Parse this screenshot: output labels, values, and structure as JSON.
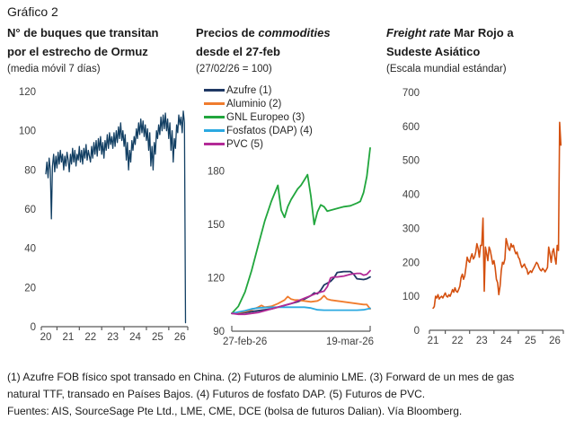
{
  "page": {
    "title": "Gráfico 2"
  },
  "footnotes": [
    "(1) Azufre FOB físico spot transado en China. (2) Futuros de aluminio LME. (3) Forward de un mes de gas",
    "natural TTF, transado en Países Bajos. (4) Futuros de fosfato DAP. (5) Futuros de PVC.",
    "Fuentes: AIS, SourceSage Pte Ltd., LME, CME, DCE (bolsa de futuros Dalian). Vía Bloomberg."
  ],
  "chart_data": [
    {
      "type": "line",
      "title_lines": [
        [
          {
            "t": "N° de buques que transitan",
            "i": false
          }
        ],
        [
          {
            "t": "por el estrecho de Ormuz",
            "i": false
          }
        ]
      ],
      "subtitle": "(media móvil 7 días)",
      "xlim": [
        19.8,
        26.35
      ],
      "ylim": [
        0,
        120
      ],
      "yticks": [
        0,
        20,
        40,
        60,
        80,
        100,
        120
      ],
      "xtick_labels": [
        {
          "v": 20,
          "t": "20"
        },
        {
          "v": 21,
          "t": "21"
        },
        {
          "v": 22,
          "t": "22"
        },
        {
          "v": 23,
          "t": "23"
        },
        {
          "v": 24,
          "t": "24"
        },
        {
          "v": 25,
          "t": "25"
        },
        {
          "v": 26,
          "t": "26"
        }
      ],
      "xtick_marks": [
        19.8,
        20.5,
        21.5,
        22.5,
        23.5,
        24.5,
        25.5,
        26.35
      ],
      "axis_style": "ticks",
      "grid": false,
      "legend": false,
      "series": [
        {
          "name": "Buques en tránsito (media móvil 7 días)",
          "color": "#123F63",
          "width": 1.3,
          "x_start": 20.0,
          "x_step": 0.05,
          "values": [
            78,
            84,
            76,
            86,
            80,
            55,
            82,
            88,
            79,
            87,
            81,
            89,
            83,
            90,
            84,
            88,
            80,
            87,
            82,
            89,
            85,
            79,
            88,
            83,
            91,
            84,
            90,
            82,
            88,
            85,
            92,
            84,
            90,
            83,
            91,
            86,
            93,
            85,
            90,
            87,
            84,
            92,
            86,
            94,
            88,
            95,
            87,
            96,
            90,
            97,
            88,
            94,
            86,
            95,
            90,
            98,
            91,
            99,
            93,
            97,
            91,
            99,
            92,
            100,
            94,
            102,
            96,
            104,
            95,
            100,
            92,
            98,
            85,
            94,
            80,
            90,
            84,
            95,
            90,
            97,
            93,
            101,
            96,
            104,
            98,
            106,
            99,
            105,
            97,
            103,
            95,
            101,
            90,
            99,
            82,
            92,
            80,
            94,
            88,
            100,
            96,
            103,
            98,
            107,
            100,
            108,
            101,
            109,
            100,
            106,
            96,
            104,
            90,
            100,
            84,
            96,
            91,
            103,
            99,
            108,
            103,
            107,
            99,
            110,
            104,
            2
          ]
        }
      ]
    },
    {
      "type": "line",
      "title_lines": [
        [
          {
            "t": "Precios de ",
            "i": false
          },
          {
            "t": "commodities",
            "i": true
          }
        ],
        [
          {
            "t": "desde el 27-feb",
            "i": false
          }
        ]
      ],
      "subtitle": "(27/02/26 = 100)",
      "xlim": [
        0,
        21
      ],
      "ylim": [
        90,
        197
      ],
      "yticks": [
        90,
        120,
        150,
        180
      ],
      "xtick_labels": [
        {
          "v": 0,
          "t": "27-feb-26",
          "anchor": "start"
        },
        {
          "v": 21,
          "t": "19-mar-26",
          "anchor": "end"
        }
      ],
      "xtick_marks": [
        0,
        21
      ],
      "axis_style": "bracket",
      "grid": false,
      "legend": true,
      "series": [
        {
          "name": "Azufre (1)",
          "color": "#1F3864",
          "width": 1.8,
          "points": [
            [
              0,
              100
            ],
            [
              1,
              100
            ],
            [
              2,
              100.5
            ],
            [
              3,
              101
            ],
            [
              4,
              101.5
            ],
            [
              5,
              102
            ],
            [
              6,
              102.5
            ],
            [
              7,
              103.5
            ],
            [
              8,
              104.5
            ],
            [
              9,
              105.5
            ],
            [
              10,
              106.5
            ],
            [
              11,
              108
            ],
            [
              12,
              110
            ],
            [
              12.5,
              111.5
            ],
            [
              13,
              111
            ],
            [
              13.5,
              113
            ],
            [
              14,
              116
            ],
            [
              15,
              118
            ],
            [
              15.5,
              120
            ],
            [
              16,
              123
            ],
            [
              17,
              123.5
            ],
            [
              18,
              123.5
            ],
            [
              18.5,
              122
            ],
            [
              19,
              119.5
            ],
            [
              20,
              119
            ],
            [
              20.5,
              119.5
            ],
            [
              21,
              120.5
            ]
          ]
        },
        {
          "name": "Aluminio (2)",
          "color": "#F07C2E",
          "width": 1.8,
          "points": [
            [
              0,
              100
            ],
            [
              1,
              100.5
            ],
            [
              2,
              101
            ],
            [
              3,
              102
            ],
            [
              4,
              103.5
            ],
            [
              4.5,
              104.5
            ],
            [
              5,
              103.5
            ],
            [
              6,
              104
            ],
            [
              7,
              105.5
            ],
            [
              8,
              107.5
            ],
            [
              8.5,
              109.5
            ],
            [
              9,
              108
            ],
            [
              9.5,
              107.5
            ],
            [
              10,
              107.5
            ],
            [
              11,
              107
            ],
            [
              12,
              106.5
            ],
            [
              13,
              107
            ],
            [
              13.5,
              108
            ],
            [
              14,
              110
            ],
            [
              14.5,
              108
            ],
            [
              15,
              107.5
            ],
            [
              16,
              107
            ],
            [
              17,
              106.5
            ],
            [
              18,
              106
            ],
            [
              19,
              105.5
            ],
            [
              20,
              105
            ],
            [
              20.5,
              105
            ],
            [
              21,
              102.5
            ]
          ]
        },
        {
          "name": "GNL Europeo (3)",
          "color": "#21A63D",
          "width": 1.8,
          "points": [
            [
              0,
              100
            ],
            [
              1,
              104
            ],
            [
              2,
              112
            ],
            [
              3,
              124
            ],
            [
              4,
              138
            ],
            [
              5,
              152
            ],
            [
              6,
              163
            ],
            [
              7,
              172
            ],
            [
              7.5,
              158
            ],
            [
              8,
              154
            ],
            [
              8.5,
              160
            ],
            [
              9,
              164
            ],
            [
              10,
              170
            ],
            [
              10.5,
              172
            ],
            [
              11,
              175
            ],
            [
              11.5,
              178
            ],
            [
              12,
              166
            ],
            [
              12.5,
              150
            ],
            [
              13,
              157
            ],
            [
              13.5,
              161
            ],
            [
              14,
              160
            ],
            [
              14.5,
              157.5
            ],
            [
              15,
              158
            ],
            [
              16,
              159
            ],
            [
              17,
              160
            ],
            [
              18,
              160.5
            ],
            [
              19,
              162
            ],
            [
              19.5,
              163
            ],
            [
              20,
              168
            ],
            [
              20.5,
              177
            ],
            [
              21,
              193
            ]
          ]
        },
        {
          "name": "Fosfatos (DAP) (4)",
          "color": "#2BA9E1",
          "width": 1.8,
          "points": [
            [
              0,
              100
            ],
            [
              1,
              100.8
            ],
            [
              2,
              101.5
            ],
            [
              3,
              102.5
            ],
            [
              4,
              103
            ],
            [
              5,
              103.3
            ],
            [
              6,
              103.5
            ],
            [
              7,
              103.5
            ],
            [
              8,
              103.5
            ],
            [
              9,
              103.5
            ],
            [
              10,
              103.5
            ],
            [
              11,
              103.5
            ],
            [
              12,
              103
            ],
            [
              12.5,
              102.5
            ],
            [
              13,
              102
            ],
            [
              14,
              101.8
            ],
            [
              15,
              101.8
            ],
            [
              16,
              101.8
            ],
            [
              17,
              101.8
            ],
            [
              18,
              101.8
            ],
            [
              19,
              101.8
            ],
            [
              20,
              102
            ],
            [
              21,
              102.8
            ]
          ]
        },
        {
          "name": "PVC (5)",
          "color": "#B32A97",
          "width": 1.8,
          "points": [
            [
              0,
              100
            ],
            [
              1,
              99.5
            ],
            [
              2,
              99.5
            ],
            [
              3,
              100
            ],
            [
              4,
              100.5
            ],
            [
              5,
              101.5
            ],
            [
              6,
              102.5
            ],
            [
              7,
              103.5
            ],
            [
              8,
              104.5
            ],
            [
              9,
              105.5
            ],
            [
              10,
              107
            ],
            [
              11,
              108.5
            ],
            [
              12,
              110
            ],
            [
              13,
              111.5
            ],
            [
              14,
              112.5
            ],
            [
              14.5,
              115
            ],
            [
              15,
              120
            ],
            [
              15.5,
              120.5
            ],
            [
              16,
              120.5
            ],
            [
              17,
              121
            ],
            [
              18,
              122
            ],
            [
              19,
              122.5
            ],
            [
              19.5,
              122.5
            ],
            [
              20,
              121.5
            ],
            [
              20.5,
              122
            ],
            [
              21,
              124
            ]
          ]
        }
      ]
    },
    {
      "type": "line",
      "title_lines": [
        [
          {
            "t": "Freight rate",
            "i": true
          },
          {
            "t": " Mar Rojo a",
            "i": false
          }
        ],
        [
          {
            "t": "Sudeste Asiático",
            "i": false
          }
        ]
      ],
      "subtitle": "(Escala mundial estándar)",
      "xlim": [
        20.85,
        26.35
      ],
      "ylim": [
        0,
        700
      ],
      "yticks": [
        0,
        100,
        200,
        300,
        400,
        500,
        600,
        700
      ],
      "xtick_labels": [
        {
          "v": 21,
          "t": "21"
        },
        {
          "v": 22,
          "t": "22"
        },
        {
          "v": 23,
          "t": "23"
        },
        {
          "v": 24,
          "t": "24"
        },
        {
          "v": 25,
          "t": "25"
        },
        {
          "v": 26,
          "t": "26"
        }
      ],
      "xtick_marks": [
        20.85,
        21.5,
        22.5,
        23.5,
        24.5,
        25.5,
        26.35
      ],
      "axis_style": "ticks",
      "grid": false,
      "legend": false,
      "series": [
        {
          "name": "Freight rate Mar Rojo a Sudeste Asiático",
          "color": "#D4500F",
          "width": 1.6,
          "x_start": 21.0,
          "x_step": 0.05,
          "values": [
            65,
            70,
            100,
            95,
            105,
            92,
            97,
            100,
            95,
            103,
            110,
            100,
            98,
            105,
            100,
            110,
            120,
            112,
            125,
            115,
            112,
            120,
            130,
            155,
            165,
            150,
            160,
            185,
            215,
            205,
            200,
            215,
            225,
            210,
            215,
            230,
            255,
            240,
            215,
            250,
            250,
            330,
            115,
            245,
            225,
            205,
            245,
            235,
            215,
            195,
            205,
            185,
            150,
            140,
            105,
            130,
            175,
            200,
            195,
            210,
            270,
            255,
            240,
            235,
            255,
            245,
            250,
            235,
            225,
            230,
            215,
            210,
            195,
            185,
            190,
            195,
            185,
            180,
            165,
            170,
            175,
            170,
            178,
            185,
            192,
            200,
            195,
            185,
            178,
            175,
            182,
            178,
            172,
            178,
            185,
            245,
            225,
            200,
            230,
            240,
            215,
            195,
            250,
            235,
            612,
            545
          ]
        }
      ]
    }
  ]
}
